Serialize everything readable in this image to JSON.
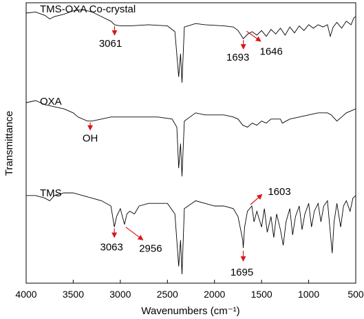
{
  "chart_data": {
    "type": "line",
    "title": "",
    "xlabel": "Wavenumbers (cm⁻¹)",
    "ylabel": "Transmittance",
    "xlim": [
      4000,
      500
    ],
    "x_reversed": true,
    "x_ticks": [
      4000,
      3500,
      3000,
      2500,
      2000,
      1500,
      1000,
      500
    ],
    "x_tick_labels": [
      "4000",
      "3500",
      "3000",
      "2500",
      "2000",
      "1500",
      "1000",
      "500"
    ],
    "y_ticks_shown": false,
    "grid": false,
    "annotation_color": "#d7191c",
    "series": [
      {
        "name": "TMS-OXA Co-crystal",
        "points": [
          [
            4000,
            0.9
          ],
          [
            3900,
            0.91
          ],
          [
            3800,
            0.88
          ],
          [
            3750,
            0.85
          ],
          [
            3700,
            0.87
          ],
          [
            3600,
            0.89
          ],
          [
            3500,
            0.92
          ],
          [
            3400,
            0.93
          ],
          [
            3300,
            0.91
          ],
          [
            3200,
            0.87
          ],
          [
            3100,
            0.83
          ],
          [
            3061,
            0.8
          ],
          [
            3000,
            0.79
          ],
          [
            2900,
            0.79
          ],
          [
            2700,
            0.8
          ],
          [
            2500,
            0.79
          ],
          [
            2420,
            0.74
          ],
          [
            2380,
            0.35
          ],
          [
            2360,
            0.55
          ],
          [
            2345,
            0.3
          ],
          [
            2320,
            0.78
          ],
          [
            2200,
            0.81
          ],
          [
            2100,
            0.8
          ],
          [
            1900,
            0.79
          ],
          [
            1800,
            0.78
          ],
          [
            1750,
            0.75
          ],
          [
            1693,
            0.68
          ],
          [
            1646,
            0.72
          ],
          [
            1600,
            0.74
          ],
          [
            1550,
            0.71
          ],
          [
            1500,
            0.75
          ],
          [
            1450,
            0.7
          ],
          [
            1400,
            0.76
          ],
          [
            1350,
            0.72
          ],
          [
            1300,
            0.77
          ],
          [
            1250,
            0.71
          ],
          [
            1200,
            0.78
          ],
          [
            1150,
            0.73
          ],
          [
            1100,
            0.79
          ],
          [
            1050,
            0.75
          ],
          [
            1000,
            0.8
          ],
          [
            950,
            0.77
          ],
          [
            900,
            0.8
          ],
          [
            850,
            0.78
          ],
          [
            800,
            0.8
          ],
          [
            770,
            0.7
          ],
          [
            740,
            0.78
          ],
          [
            700,
            0.82
          ],
          [
            650,
            0.77
          ],
          [
            600,
            0.83
          ],
          [
            550,
            0.8
          ],
          [
            520,
            0.86
          ],
          [
            500,
            0.87
          ]
        ],
        "annotations": [
          {
            "x": 3061,
            "label": "3061"
          },
          {
            "x": 1693,
            "label": "1693"
          },
          {
            "x": 1646,
            "label": "1646"
          }
        ]
      },
      {
        "name": "OXA",
        "points": [
          [
            4000,
            0.52
          ],
          [
            3900,
            0.53
          ],
          [
            3800,
            0.51
          ],
          [
            3700,
            0.5
          ],
          [
            3600,
            0.49
          ],
          [
            3500,
            0.47
          ],
          [
            3450,
            0.45
          ],
          [
            3350,
            0.43
          ],
          [
            3300,
            0.43
          ],
          [
            3200,
            0.44
          ],
          [
            3100,
            0.45
          ],
          [
            3000,
            0.45
          ],
          [
            2800,
            0.45
          ],
          [
            2600,
            0.45
          ],
          [
            2450,
            0.44
          ],
          [
            2400,
            0.4
          ],
          [
            2380,
            0.2
          ],
          [
            2360,
            0.32
          ],
          [
            2345,
            0.16
          ],
          [
            2320,
            0.43
          ],
          [
            2200,
            0.47
          ],
          [
            2100,
            0.46
          ],
          [
            2000,
            0.46
          ],
          [
            1900,
            0.46
          ],
          [
            1800,
            0.45
          ],
          [
            1750,
            0.44
          ],
          [
            1700,
            0.41
          ],
          [
            1650,
            0.4
          ],
          [
            1600,
            0.42
          ],
          [
            1550,
            0.41
          ],
          [
            1500,
            0.43
          ],
          [
            1450,
            0.42
          ],
          [
            1400,
            0.44
          ],
          [
            1300,
            0.44
          ],
          [
            1280,
            0.42
          ],
          [
            1200,
            0.44
          ],
          [
            1100,
            0.45
          ],
          [
            1000,
            0.46
          ],
          [
            900,
            0.47
          ],
          [
            800,
            0.47
          ],
          [
            760,
            0.46
          ],
          [
            700,
            0.43
          ],
          [
            650,
            0.45
          ],
          [
            600,
            0.47
          ],
          [
            550,
            0.48
          ],
          [
            500,
            0.49
          ]
        ],
        "annotations": [
          {
            "x": 3320,
            "label": "OH"
          }
        ]
      },
      {
        "name": "TMS",
        "points": [
          [
            4000,
            0.22
          ],
          [
            3900,
            0.22
          ],
          [
            3800,
            0.21
          ],
          [
            3750,
            0.2
          ],
          [
            3700,
            0.22
          ],
          [
            3600,
            0.23
          ],
          [
            3500,
            0.23
          ],
          [
            3400,
            0.22
          ],
          [
            3300,
            0.21
          ],
          [
            3200,
            0.2
          ],
          [
            3100,
            0.18
          ],
          [
            3063,
            0.1
          ],
          [
            3040,
            0.14
          ],
          [
            3000,
            0.17
          ],
          [
            2956,
            0.11
          ],
          [
            2930,
            0.15
          ],
          [
            2900,
            0.16
          ],
          [
            2850,
            0.15
          ],
          [
            2800,
            0.18
          ],
          [
            2700,
            0.19
          ],
          [
            2600,
            0.19
          ],
          [
            2500,
            0.19
          ],
          [
            2420,
            0.15
          ],
          [
            2380,
            -0.05
          ],
          [
            2360,
            0.05
          ],
          [
            2345,
            -0.08
          ],
          [
            2320,
            0.17
          ],
          [
            2200,
            0.2
          ],
          [
            2100,
            0.19
          ],
          [
            2000,
            0.18
          ],
          [
            1900,
            0.18
          ],
          [
            1800,
            0.17
          ],
          [
            1750,
            0.14
          ],
          [
            1700,
            0.05
          ],
          [
            1695,
            0.02
          ],
          [
            1680,
            0.1
          ],
          [
            1650,
            0.16
          ],
          [
            1603,
            0.18
          ],
          [
            1580,
            0.12
          ],
          [
            1550,
            0.16
          ],
          [
            1500,
            0.1
          ],
          [
            1470,
            0.17
          ],
          [
            1440,
            0.08
          ],
          [
            1400,
            0.14
          ],
          [
            1370,
            0.06
          ],
          [
            1340,
            0.15
          ],
          [
            1300,
            0.09
          ],
          [
            1270,
            0.03
          ],
          [
            1240,
            0.12
          ],
          [
            1200,
            0.17
          ],
          [
            1170,
            0.07
          ],
          [
            1140,
            0.14
          ],
          [
            1100,
            0.18
          ],
          [
            1070,
            0.09
          ],
          [
            1040,
            0.15
          ],
          [
            1000,
            0.19
          ],
          [
            970,
            0.1
          ],
          [
            940,
            0.16
          ],
          [
            900,
            0.19
          ],
          [
            870,
            0.12
          ],
          [
            840,
            0.18
          ],
          [
            800,
            0.2
          ],
          [
            770,
            0.08
          ],
          [
            750,
            0.0
          ],
          [
            730,
            0.12
          ],
          [
            700,
            0.19
          ],
          [
            660,
            0.1
          ],
          [
            630,
            0.18
          ],
          [
            600,
            0.2
          ],
          [
            560,
            0.16
          ],
          [
            530,
            0.21
          ],
          [
            500,
            0.22
          ]
        ],
        "annotations": [
          {
            "x": 3063,
            "label": "3063"
          },
          {
            "x": 2956,
            "label": "2956"
          },
          {
            "x": 1695,
            "label": "1695"
          },
          {
            "x": 1603,
            "label": "1603"
          }
        ]
      }
    ]
  }
}
